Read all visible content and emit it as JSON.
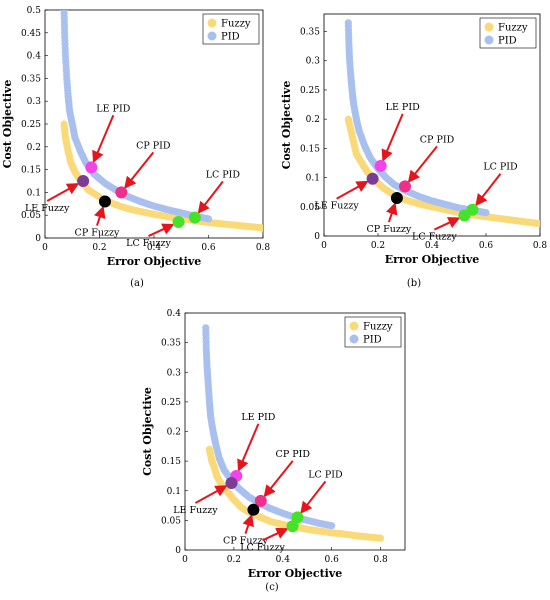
{
  "figure": {
    "panels": [
      {
        "label": "(a)"
      },
      {
        "label": "(b)"
      },
      {
        "label": "(c)"
      }
    ]
  },
  "colors": {
    "fuzzy": "#F9D978",
    "pid": "#A9C0EE",
    "black": "#000000",
    "purple": "#7A3D93",
    "magenta": "#F244EA",
    "pink": "#EF2F8C",
    "green": "#45E22A",
    "arrow": "#E8141C"
  },
  "chart_data": [
    {
      "type": "scatter",
      "panel": "(a)",
      "xlabel": "Error Objective",
      "ylabel": "Cost Objective",
      "xlim": [
        0,
        0.8
      ],
      "ylim": [
        0,
        0.5
      ],
      "xticks": [
        "0",
        "0.2",
        "0.4",
        "0.6",
        "0.8"
      ],
      "yticks": [
        "0",
        "0.05",
        "0.1",
        "0.15",
        "0.2",
        "0.25",
        "0.3",
        "0.35",
        "0.4",
        "0.45",
        "0.5"
      ],
      "legend": {
        "position": "top-right",
        "entries": [
          "Fuzzy",
          "PID"
        ]
      },
      "series": [
        {
          "name": "Fuzzy",
          "color_key": "fuzzy",
          "x": [
            0.07,
            0.075,
            0.085,
            0.095,
            0.11,
            0.13,
            0.16,
            0.2,
            0.25,
            0.3,
            0.35,
            0.4,
            0.45,
            0.5,
            0.55,
            0.6,
            0.65,
            0.7,
            0.75,
            0.8
          ],
          "y": [
            0.25,
            0.22,
            0.19,
            0.165,
            0.145,
            0.125,
            0.105,
            0.09,
            0.075,
            0.065,
            0.058,
            0.052,
            0.047,
            0.042,
            0.038,
            0.034,
            0.031,
            0.028,
            0.025,
            0.022
          ]
        },
        {
          "name": "PID",
          "color_key": "pid",
          "x": [
            0.07,
            0.072,
            0.075,
            0.08,
            0.085,
            0.09,
            0.1,
            0.11,
            0.13,
            0.15,
            0.18,
            0.22,
            0.26,
            0.3,
            0.35,
            0.4,
            0.45,
            0.5,
            0.55,
            0.6
          ],
          "y": [
            0.5,
            0.45,
            0.4,
            0.35,
            0.31,
            0.28,
            0.25,
            0.22,
            0.19,
            0.165,
            0.14,
            0.12,
            0.105,
            0.092,
            0.08,
            0.07,
            0.062,
            0.055,
            0.048,
            0.042
          ]
        }
      ],
      "markers": [
        {
          "label": "LE PID",
          "x": 0.17,
          "y": 0.155,
          "color_key": "magenta"
        },
        {
          "label": "CP PID",
          "x": 0.28,
          "y": 0.1,
          "color_key": "pink"
        },
        {
          "label": "LE Fuzzy",
          "x": 0.14,
          "y": 0.125,
          "color_key": "purple"
        },
        {
          "label": "CP Fuzzy",
          "x": 0.22,
          "y": 0.08,
          "color_key": "black"
        },
        {
          "label": "LC PID",
          "x": 0.55,
          "y": 0.045,
          "color_key": "green"
        },
        {
          "label": "LC Fuzzy",
          "x": 0.49,
          "y": 0.035,
          "color_key": "green"
        }
      ]
    },
    {
      "type": "scatter",
      "panel": "(b)",
      "xlabel": "Error Objective",
      "ylabel": "Cost Objective",
      "xlim": [
        0,
        0.8
      ],
      "ylim": [
        0,
        0.38
      ],
      "xticks": [
        "0",
        "0.2",
        "0.4",
        "0.6",
        "0.8"
      ],
      "yticks": [
        "0",
        "0.05",
        "0.1",
        "0.15",
        "0.2",
        "0.25",
        "0.3",
        "0.35"
      ],
      "legend": {
        "position": "top-right",
        "entries": [
          "Fuzzy",
          "PID"
        ]
      },
      "series": [
        {
          "name": "Fuzzy",
          "color_key": "fuzzy",
          "x": [
            0.09,
            0.1,
            0.11,
            0.12,
            0.14,
            0.16,
            0.19,
            0.22,
            0.26,
            0.3,
            0.35,
            0.4,
            0.45,
            0.5,
            0.55,
            0.6,
            0.65,
            0.7,
            0.75,
            0.8
          ],
          "y": [
            0.2,
            0.18,
            0.16,
            0.14,
            0.125,
            0.11,
            0.095,
            0.082,
            0.07,
            0.062,
            0.055,
            0.05,
            0.045,
            0.04,
            0.036,
            0.033,
            0.03,
            0.027,
            0.024,
            0.021
          ]
        },
        {
          "name": "PID",
          "color_key": "pid",
          "x": [
            0.09,
            0.092,
            0.095,
            0.1,
            0.105,
            0.11,
            0.12,
            0.13,
            0.15,
            0.17,
            0.2,
            0.23,
            0.26,
            0.3,
            0.35,
            0.4,
            0.45,
            0.5,
            0.55,
            0.6
          ],
          "y": [
            0.365,
            0.33,
            0.3,
            0.27,
            0.245,
            0.225,
            0.2,
            0.18,
            0.155,
            0.135,
            0.115,
            0.1,
            0.088,
            0.078,
            0.068,
            0.06,
            0.054,
            0.048,
            0.044,
            0.04
          ]
        }
      ],
      "markers": [
        {
          "label": "LE PID",
          "x": 0.21,
          "y": 0.12,
          "color_key": "magenta"
        },
        {
          "label": "CP PID",
          "x": 0.3,
          "y": 0.085,
          "color_key": "pink"
        },
        {
          "label": "LE Fuzzy",
          "x": 0.18,
          "y": 0.098,
          "color_key": "purple"
        },
        {
          "label": "CP Fuzzy",
          "x": 0.27,
          "y": 0.065,
          "color_key": "black"
        },
        {
          "label": "LC PID",
          "x": 0.55,
          "y": 0.045,
          "color_key": "green"
        },
        {
          "label": "LC Fuzzy",
          "x": 0.52,
          "y": 0.035,
          "color_key": "green"
        }
      ]
    },
    {
      "type": "scatter",
      "panel": "(c)",
      "xlabel": "Error Objective",
      "ylabel": "Cost Objective",
      "xlim": [
        0,
        0.9
      ],
      "ylim": [
        0,
        0.4
      ],
      "xticks": [
        "0",
        "0.2",
        "0.4",
        "0.6",
        "0.8"
      ],
      "yticks": [
        "0",
        "0.05",
        "0.1",
        "0.15",
        "0.2",
        "0.25",
        "0.3",
        "0.35",
        "0.4"
      ],
      "legend": {
        "position": "top-right",
        "entries": [
          "Fuzzy",
          "PID"
        ]
      },
      "series": [
        {
          "name": "Fuzzy",
          "color_key": "fuzzy",
          "x": [
            0.1,
            0.11,
            0.12,
            0.13,
            0.15,
            0.17,
            0.2,
            0.23,
            0.27,
            0.31,
            0.35,
            0.4,
            0.45,
            0.5,
            0.55,
            0.6,
            0.65,
            0.7,
            0.75,
            0.8
          ],
          "y": [
            0.17,
            0.15,
            0.14,
            0.125,
            0.11,
            0.1,
            0.085,
            0.072,
            0.062,
            0.055,
            0.048,
            0.043,
            0.039,
            0.035,
            0.032,
            0.029,
            0.027,
            0.024,
            0.022,
            0.02
          ]
        },
        {
          "name": "PID",
          "color_key": "pid",
          "x": [
            0.085,
            0.087,
            0.09,
            0.095,
            0.1,
            0.105,
            0.115,
            0.125,
            0.14,
            0.16,
            0.19,
            0.22,
            0.26,
            0.3,
            0.35,
            0.4,
            0.45,
            0.5,
            0.55,
            0.6
          ],
          "y": [
            0.375,
            0.34,
            0.31,
            0.28,
            0.25,
            0.225,
            0.2,
            0.18,
            0.155,
            0.135,
            0.118,
            0.104,
            0.09,
            0.08,
            0.07,
            0.062,
            0.055,
            0.05,
            0.045,
            0.041
          ]
        }
      ],
      "markers": [
        {
          "label": "LE PID",
          "x": 0.21,
          "y": 0.125,
          "color_key": "magenta"
        },
        {
          "label": "CP PID",
          "x": 0.31,
          "y": 0.083,
          "color_key": "pink"
        },
        {
          "label": "LE Fuzzy",
          "x": 0.19,
          "y": 0.113,
          "color_key": "purple"
        },
        {
          "label": "CP Fuzzy",
          "x": 0.28,
          "y": 0.068,
          "color_key": "black"
        },
        {
          "label": "LC PID",
          "x": 0.46,
          "y": 0.055,
          "color_key": "green"
        },
        {
          "label": "LC Fuzzy",
          "x": 0.44,
          "y": 0.04,
          "color_key": "green"
        }
      ]
    }
  ]
}
